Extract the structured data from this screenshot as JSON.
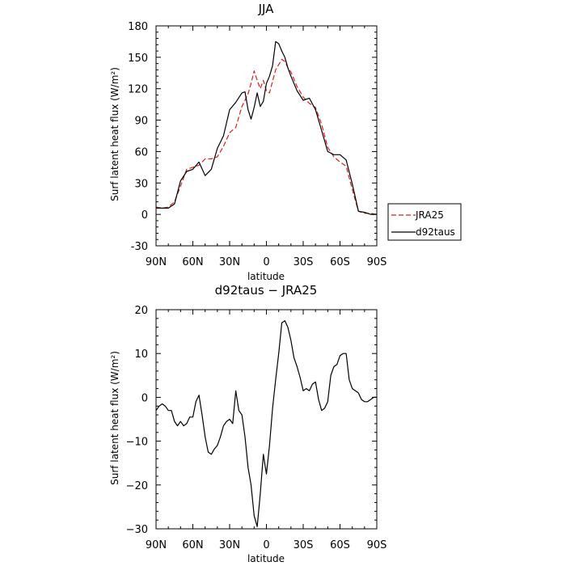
{
  "chart_data": [
    {
      "type": "line",
      "title": "JJA",
      "xlabel": "latitude",
      "ylabel": "Surf latent heat flux (W/m²)",
      "xlim": [
        90,
        -90
      ],
      "ylim": [
        -30,
        180
      ],
      "xticks": [
        90,
        60,
        30,
        0,
        -30,
        -60,
        -90
      ],
      "xtick_labels": [
        "90N",
        "60N",
        "30N",
        "0",
        "30S",
        "60S",
        "90S"
      ],
      "yticks": [
        -30,
        0,
        30,
        60,
        90,
        120,
        150,
        180
      ],
      "ytick_labels": [
        "-30",
        "0",
        "30",
        "60",
        "90",
        "120",
        "150",
        "180"
      ],
      "legend_position": "outside-right",
      "series": [
        {
          "name": "JRA25",
          "color": "#e41a1c",
          "dash": "dashed",
          "x": [
            90,
            85,
            80,
            75,
            70,
            65,
            60,
            55,
            50,
            45,
            40,
            35,
            30,
            25,
            20,
            15,
            12.5,
            10,
            7.5,
            5,
            2.5,
            0,
            -2.5,
            -5,
            -7.5,
            -10,
            -12.5,
            -15,
            -17.5,
            -20,
            -25,
            -30,
            -35,
            -40,
            -45,
            -50,
            -55,
            -60,
            -65,
            -70,
            -75,
            -80,
            -85,
            -90
          ],
          "y": [
            7,
            6,
            7,
            12,
            27,
            43,
            45,
            47,
            53,
            53,
            55,
            65,
            78,
            83,
            103,
            115,
            125,
            137,
            128,
            120,
            128,
            118,
            116,
            127,
            138,
            143,
            148,
            146,
            140,
            136,
            122,
            112,
            106,
            102,
            86,
            64,
            55,
            50,
            46,
            24,
            3,
            1,
            1,
            0
          ]
        },
        {
          "name": "d92taus",
          "color": "#000000",
          "dash": "solid",
          "x": [
            90,
            85,
            80,
            75,
            70,
            65,
            60,
            55,
            50,
            45,
            40,
            35,
            30,
            25,
            20,
            17.5,
            15,
            12.5,
            10,
            7.5,
            5,
            2.5,
            0,
            -2.5,
            -5,
            -7.5,
            -10,
            -12.5,
            -15,
            -17.5,
            -20,
            -25,
            -30,
            -35,
            -40,
            -45,
            -50,
            -55,
            -60,
            -65,
            -70,
            -75,
            -80,
            -85,
            -90
          ],
          "y": [
            6,
            6,
            6,
            10,
            32,
            41,
            43,
            50,
            37,
            43,
            63,
            75,
            100,
            107,
            116,
            117,
            100,
            91,
            102,
            116,
            103,
            108,
            125,
            132,
            142,
            165,
            163,
            156,
            150,
            140,
            132,
            118,
            109,
            111,
            100,
            80,
            60,
            57,
            57,
            52,
            29,
            3,
            2,
            0,
            0
          ]
        }
      ]
    },
    {
      "type": "line",
      "title": "d92taus − JRA25",
      "xlabel": "latitude",
      "ylabel": "Surf latent heat flux (W/m²)",
      "xlim": [
        90,
        -90
      ],
      "ylim": [
        -30,
        20
      ],
      "xticks": [
        90,
        60,
        30,
        0,
        -30,
        -60,
        -90
      ],
      "xtick_labels": [
        "90N",
        "60N",
        "30N",
        "0",
        "30S",
        "60S",
        "90S"
      ],
      "yticks": [
        -30,
        -20,
        -10,
        0,
        10,
        20
      ],
      "ytick_labels": [
        "−30",
        "−20",
        "−10",
        "0",
        "10",
        "20"
      ],
      "series": [
        {
          "color": "#000000",
          "dash": "solid",
          "x": [
            90,
            87.5,
            85,
            82.5,
            80,
            77.5,
            75,
            72.5,
            70,
            67.5,
            65,
            62.5,
            60,
            57.5,
            55,
            52.5,
            50,
            47.5,
            45,
            42.5,
            40,
            37.5,
            35,
            32.5,
            30,
            27.5,
            25,
            22.5,
            20,
            17.5,
            15,
            12.5,
            10,
            7.5,
            5,
            2.5,
            0,
            -2.5,
            -5,
            -7.5,
            -10,
            -12.5,
            -15,
            -17.5,
            -20,
            -22.5,
            -25,
            -27.5,
            -30,
            -32.5,
            -35,
            -37.5,
            -40,
            -42.5,
            -45,
            -47.5,
            -50,
            -52.5,
            -55,
            -57.5,
            -60,
            -62.5,
            -65,
            -67.5,
            -70,
            -72.5,
            -75,
            -77.5,
            -80,
            -82.5,
            -85,
            -87.5,
            -90
          ],
          "y": [
            -3,
            -2,
            -1.5,
            -2,
            -3,
            -3,
            -5.5,
            -6.5,
            -5.5,
            -6.5,
            -6,
            -4.5,
            -4.5,
            -1,
            0.5,
            -4,
            -9,
            -12.5,
            -13,
            -11.8,
            -11,
            -9,
            -6.5,
            -5.5,
            -5,
            -6,
            1.5,
            -3,
            -4,
            -9,
            -16,
            -20,
            -27,
            -29.5,
            -22,
            -13,
            -17.5,
            -11,
            -2.5,
            4,
            10,
            17,
            17.5,
            16,
            13,
            9,
            7,
            4.5,
            1.5,
            2,
            1.5,
            3,
            3.5,
            -0.5,
            -3,
            -2.5,
            -1,
            5,
            7,
            7.5,
            9.5,
            10,
            10,
            4,
            2,
            1.5,
            1,
            -0.5,
            -1,
            -1,
            -0.5,
            0,
            0
          ]
        }
      ]
    }
  ]
}
